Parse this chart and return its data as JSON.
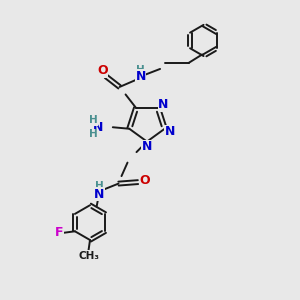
{
  "background_color": "#e8e8e8",
  "bond_color": "#1a1a1a",
  "n_color": "#0000cc",
  "o_color": "#cc0000",
  "f_color": "#cc00cc",
  "h_color": "#4a9090",
  "figsize": [
    3.0,
    3.0
  ],
  "dpi": 100,
  "xlim": [
    0,
    10
  ],
  "ylim": [
    0,
    10
  ]
}
